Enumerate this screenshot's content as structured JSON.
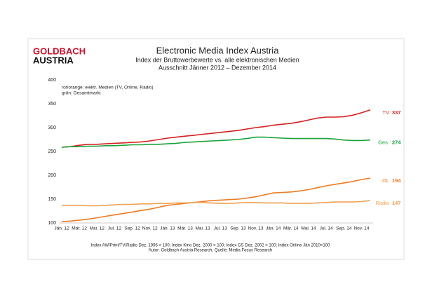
{
  "logo": [
    "GOLDBACH",
    "AUSTRIA"
  ],
  "chart_data": {
    "type": "line",
    "title": "Electronic Media Index Austria",
    "subtitle": [
      "Index der Bruttowerbewerte vs. alle elektronischen Medien",
      "Ausschnitt Jänner 2012 –  Dezember 2014"
    ],
    "annotations": [
      "rot/orange: elektr. Medien (TV, Online, Radio)",
      "grün: Gesamtmarkt"
    ],
    "footnotes": [
      "Index AW/Print/TV/Radio Dez. 1996 = 100; Index Kino Dez. 2000 = 100; Index GS Dez. 2002 = 100; Index Online Jän 2010=100",
      "Autor: Goldbach Austria Research, Quelle: Media Focus Research"
    ],
    "categories": [
      "Jän. 12",
      null,
      "Mär. 12",
      null,
      "Mai. 12",
      null,
      "Jul. 12",
      null,
      "Sep. 12",
      null,
      "Nov. 12",
      null,
      "Jän. 13",
      null,
      "Mär. 13",
      null,
      "Mai. 13",
      null,
      "Jul. 13",
      null,
      "Sep. 13",
      null,
      "Nov. 13",
      null,
      "Jän. 14",
      null,
      "Mär. 14",
      null,
      "Mai. 14",
      null,
      "Jul. 14",
      null,
      "Sep. 14",
      null,
      "Nov. 14",
      null
    ],
    "ylim": [
      100,
      400
    ],
    "yticks": [
      100,
      150,
      200,
      250,
      300,
      350,
      400
    ],
    "grid": false,
    "series": [
      {
        "name": "TV",
        "color": "#d42020",
        "values": [
          259,
          260,
          263,
          265,
          265,
          266,
          267,
          268,
          269,
          270,
          272,
          275,
          278,
          280,
          282,
          284,
          286,
          288,
          290,
          292,
          294,
          297,
          300,
          302,
          305,
          307,
          309,
          312,
          316,
          320,
          322,
          322,
          323,
          326,
          331,
          337
        ]
      },
      {
        "name": "Ges.",
        "color": "#1aa33a",
        "values": [
          259,
          260,
          260,
          261,
          261,
          262,
          262,
          263,
          264,
          264,
          265,
          265,
          266,
          267,
          269,
          270,
          271,
          272,
          273,
          274,
          275,
          277,
          280,
          280,
          279,
          278,
          277,
          277,
          277,
          277,
          277,
          276,
          274,
          273,
          273,
          274
        ]
      },
      {
        "name": "OL",
        "color": "#ee7a22",
        "values": [
          103,
          104,
          106,
          108,
          111,
          114,
          117,
          120,
          123,
          126,
          129,
          133,
          137,
          139,
          141,
          143,
          145,
          147,
          148,
          149,
          150,
          152,
          155,
          159,
          163,
          164,
          165,
          167,
          170,
          174,
          178,
          181,
          184,
          187,
          191,
          194
        ]
      },
      {
        "name": "Radio",
        "color": "#f0a050",
        "values": [
          137,
          137,
          137,
          136,
          136,
          137,
          138,
          139,
          139,
          140,
          140,
          141,
          141,
          142,
          142,
          143,
          143,
          142,
          141,
          141,
          142,
          143,
          143,
          142,
          142,
          142,
          141,
          141,
          141,
          142,
          143,
          144,
          144,
          144,
          145,
          147
        ]
      }
    ]
  }
}
